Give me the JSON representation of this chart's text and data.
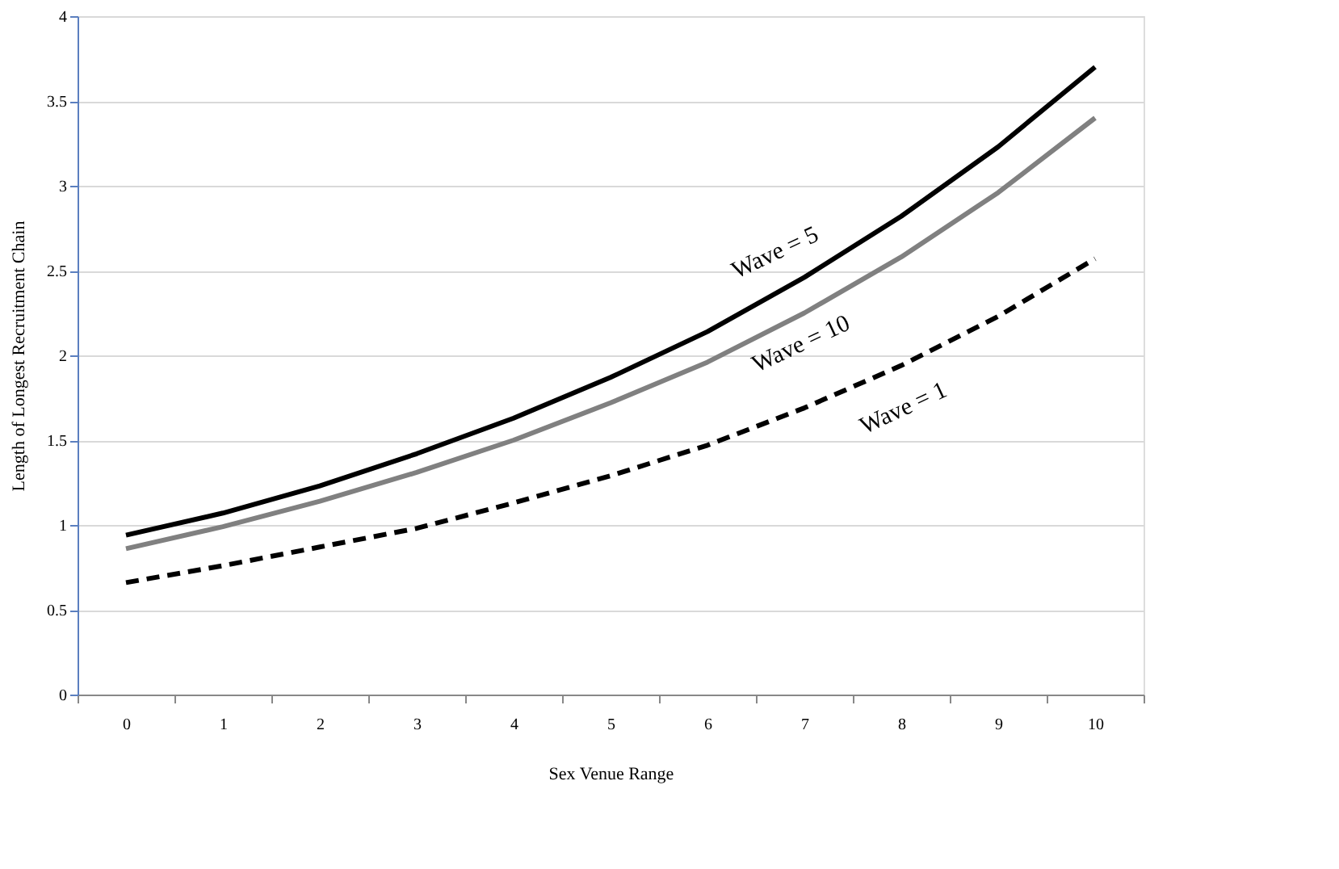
{
  "chart_data": {
    "type": "line",
    "xlabel": "Sex Venue Range",
    "ylabel": "Length of Longest Recruitment Chain",
    "categories": [
      "0",
      "1",
      "2",
      "3",
      "4",
      "5",
      "6",
      "7",
      "8",
      "9",
      "10"
    ],
    "series": [
      {
        "name": "Wave = 5",
        "color": "#000000",
        "line_style": "solid",
        "values": [
          0.94,
          1.07,
          1.23,
          1.42,
          1.63,
          1.87,
          2.14,
          2.46,
          2.82,
          3.23,
          3.7
        ]
      },
      {
        "name": "Wave = 10",
        "color": "#808080",
        "line_style": "solid",
        "values": [
          0.86,
          0.99,
          1.14,
          1.31,
          1.5,
          1.72,
          1.96,
          2.25,
          2.58,
          2.96,
          3.4
        ]
      },
      {
        "name": "Wave = 1",
        "color": "#000000",
        "line_style": "dashed",
        "values": [
          0.66,
          0.76,
          0.87,
          0.98,
          1.13,
          1.29,
          1.47,
          1.69,
          1.94,
          2.23,
          2.57
        ]
      }
    ],
    "ylim": [
      0,
      4
    ],
    "yticks": [
      0,
      0.5,
      1,
      1.5,
      2,
      2.5,
      3,
      3.5,
      4
    ],
    "grid": "y",
    "marker": "none"
  }
}
